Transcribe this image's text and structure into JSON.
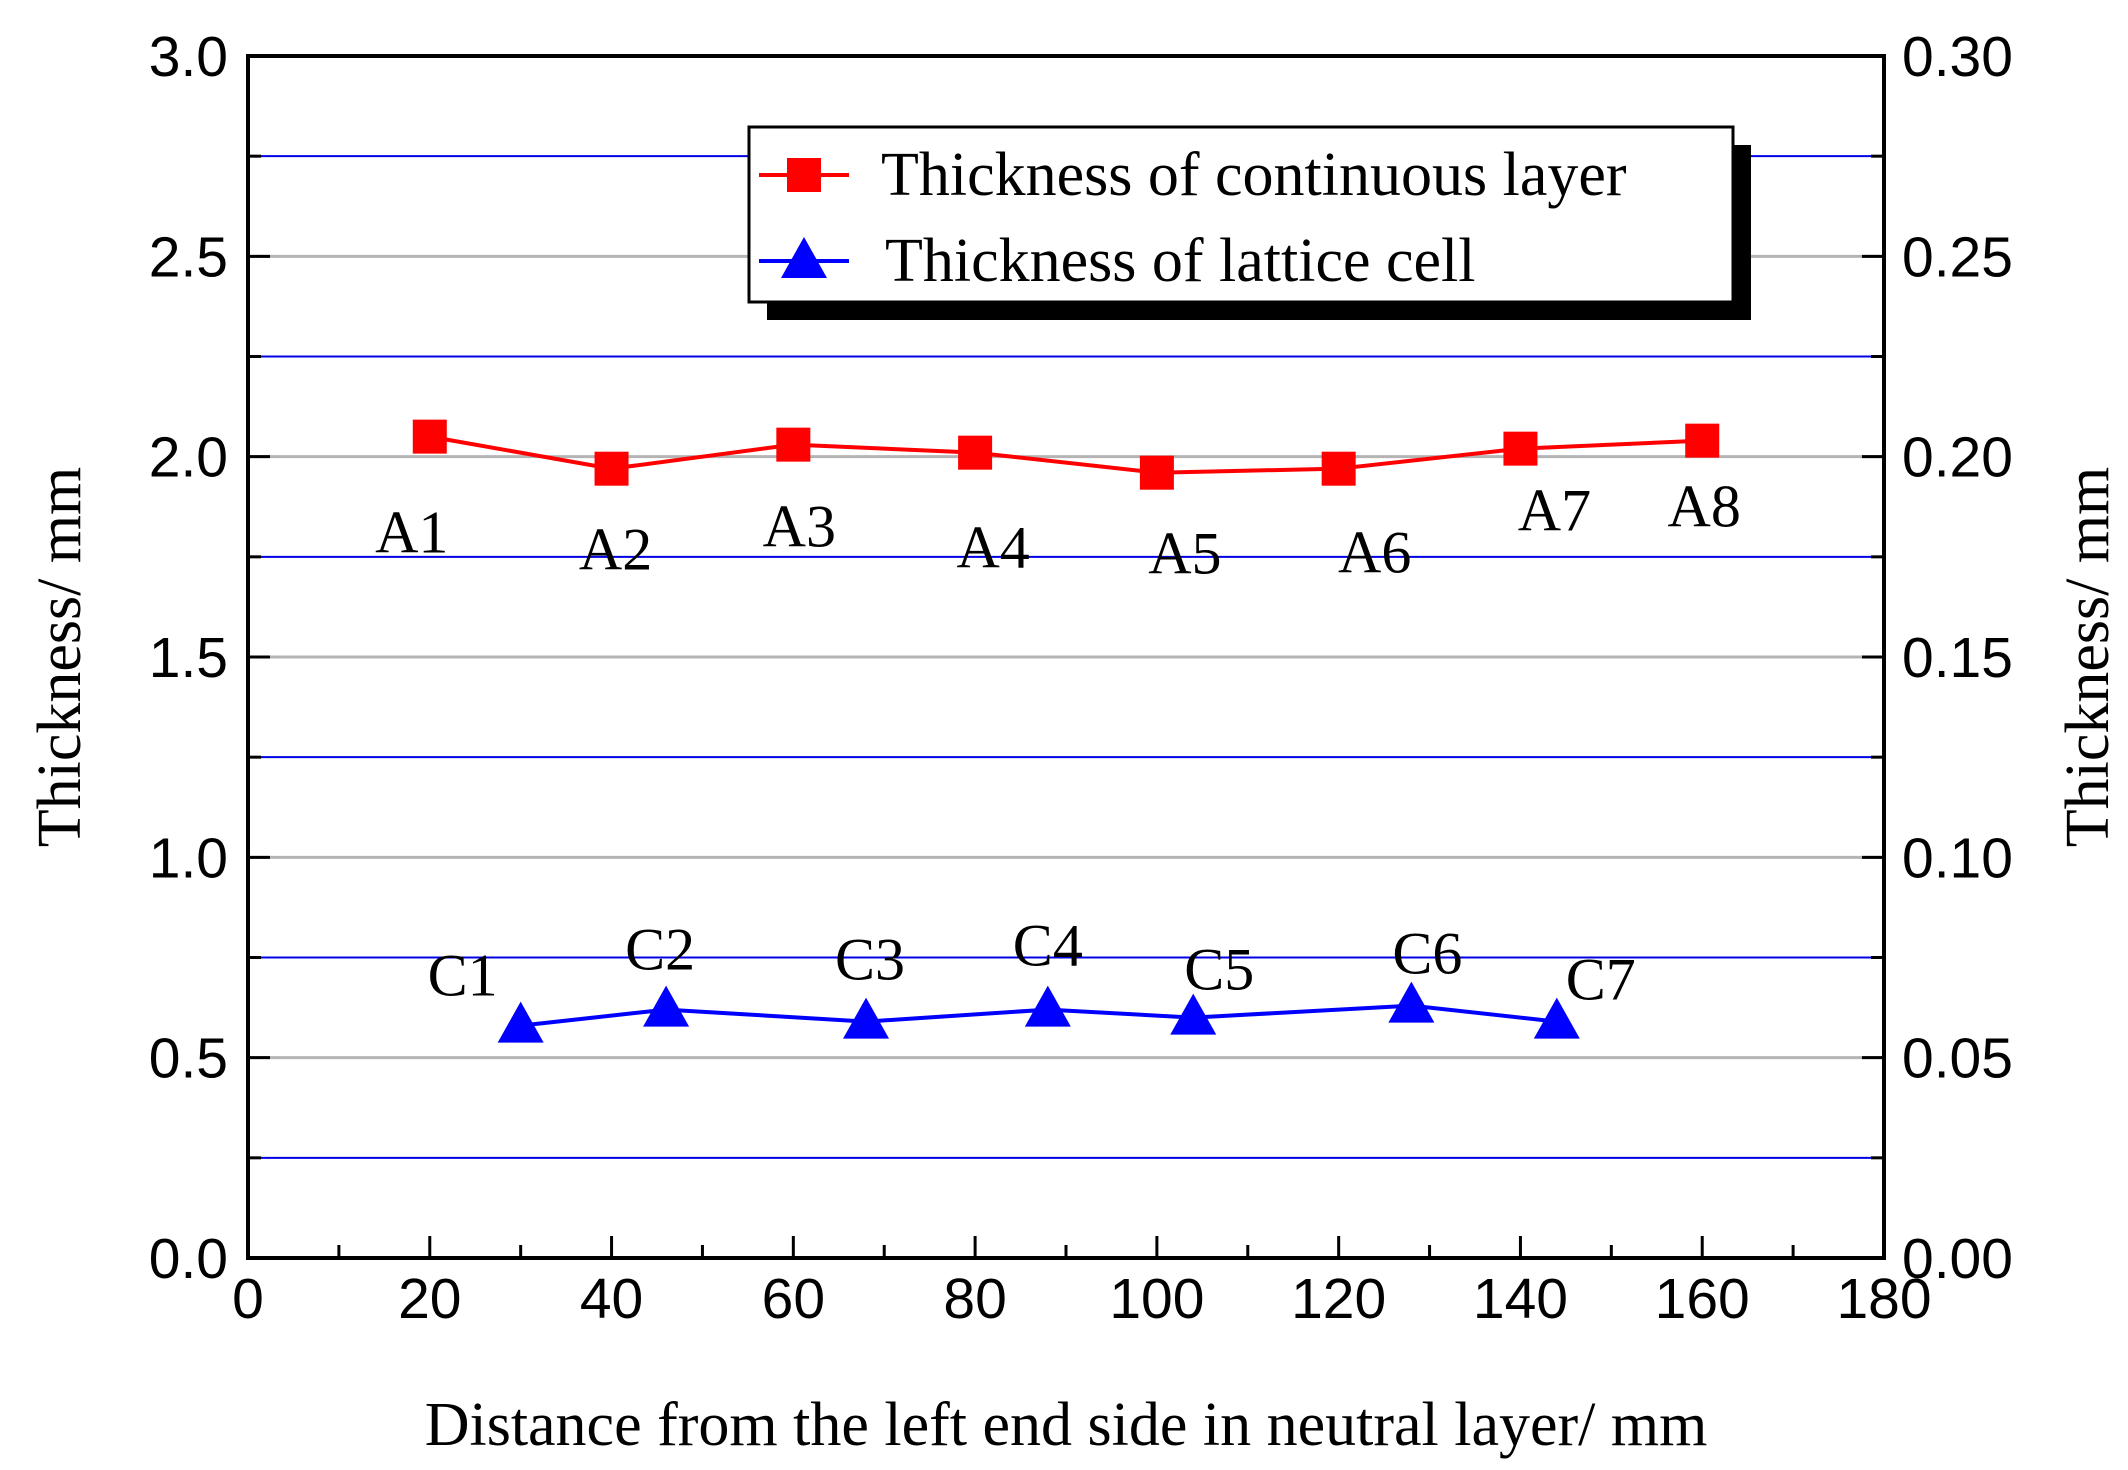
{
  "chart_data": {
    "type": "line",
    "title": "",
    "xlabel": "Distance from the left end side in neutral layer/ mm",
    "ylabel_left": "Thickness/ mm",
    "ylabel_right": "Thickness/ mm",
    "xlim": [
      0,
      180
    ],
    "ylim_left": [
      0,
      3.0
    ],
    "ylim_right": [
      0,
      0.3
    ],
    "x_ticks": [
      0,
      20,
      40,
      60,
      80,
      100,
      120,
      140,
      160,
      180
    ],
    "x_tick_labels": [
      "0",
      "20",
      "40",
      "60",
      "80",
      "100",
      "120",
      "140",
      "160",
      "180"
    ],
    "y_left_ticks": [
      0,
      0.5,
      1.0,
      1.5,
      2.0,
      2.5,
      3.0
    ],
    "y_left_tick_labels": [
      "0.0",
      "0.5",
      "1.0",
      "1.5",
      "2.0",
      "2.5",
      "3.0"
    ],
    "y_right_ticks": [
      0,
      0.05,
      0.1,
      0.15,
      0.2,
      0.25,
      0.3
    ],
    "y_right_tick_labels": [
      "0.00",
      "0.05",
      "0.10",
      "0.15",
      "0.20",
      "0.25",
      "0.30"
    ],
    "gridlines_gray_left_values": [
      0.5,
      1.0,
      1.5,
      2.0,
      2.5
    ],
    "gridlines_blue_left_values": [
      0.25,
      0.75,
      1.25,
      1.75,
      2.25,
      2.75
    ],
    "legend_position": "top-right",
    "series": [
      {
        "name": "Thickness of continuous layer",
        "axis": "left",
        "color": "#ff0000",
        "marker": "square",
        "x": [
          20,
          40,
          60,
          80,
          100,
          120,
          140,
          160
        ],
        "y": [
          2.05,
          1.97,
          2.03,
          2.01,
          1.96,
          1.97,
          2.02,
          2.04
        ],
        "point_labels": [
          "A1",
          "A2",
          "A3",
          "A4",
          "A5",
          "A6",
          "A7",
          "A8"
        ]
      },
      {
        "name": "Thickness of lattice cell",
        "axis": "right",
        "color": "#0000ff",
        "marker": "triangle",
        "x": [
          30,
          46,
          68,
          88,
          104,
          128,
          144
        ],
        "y": [
          0.058,
          0.062,
          0.059,
          0.062,
          0.06,
          0.063,
          0.059
        ],
        "point_labels": [
          "C1",
          "C2",
          "C3",
          "C4",
          "C5",
          "C6",
          "C7"
        ]
      }
    ]
  }
}
